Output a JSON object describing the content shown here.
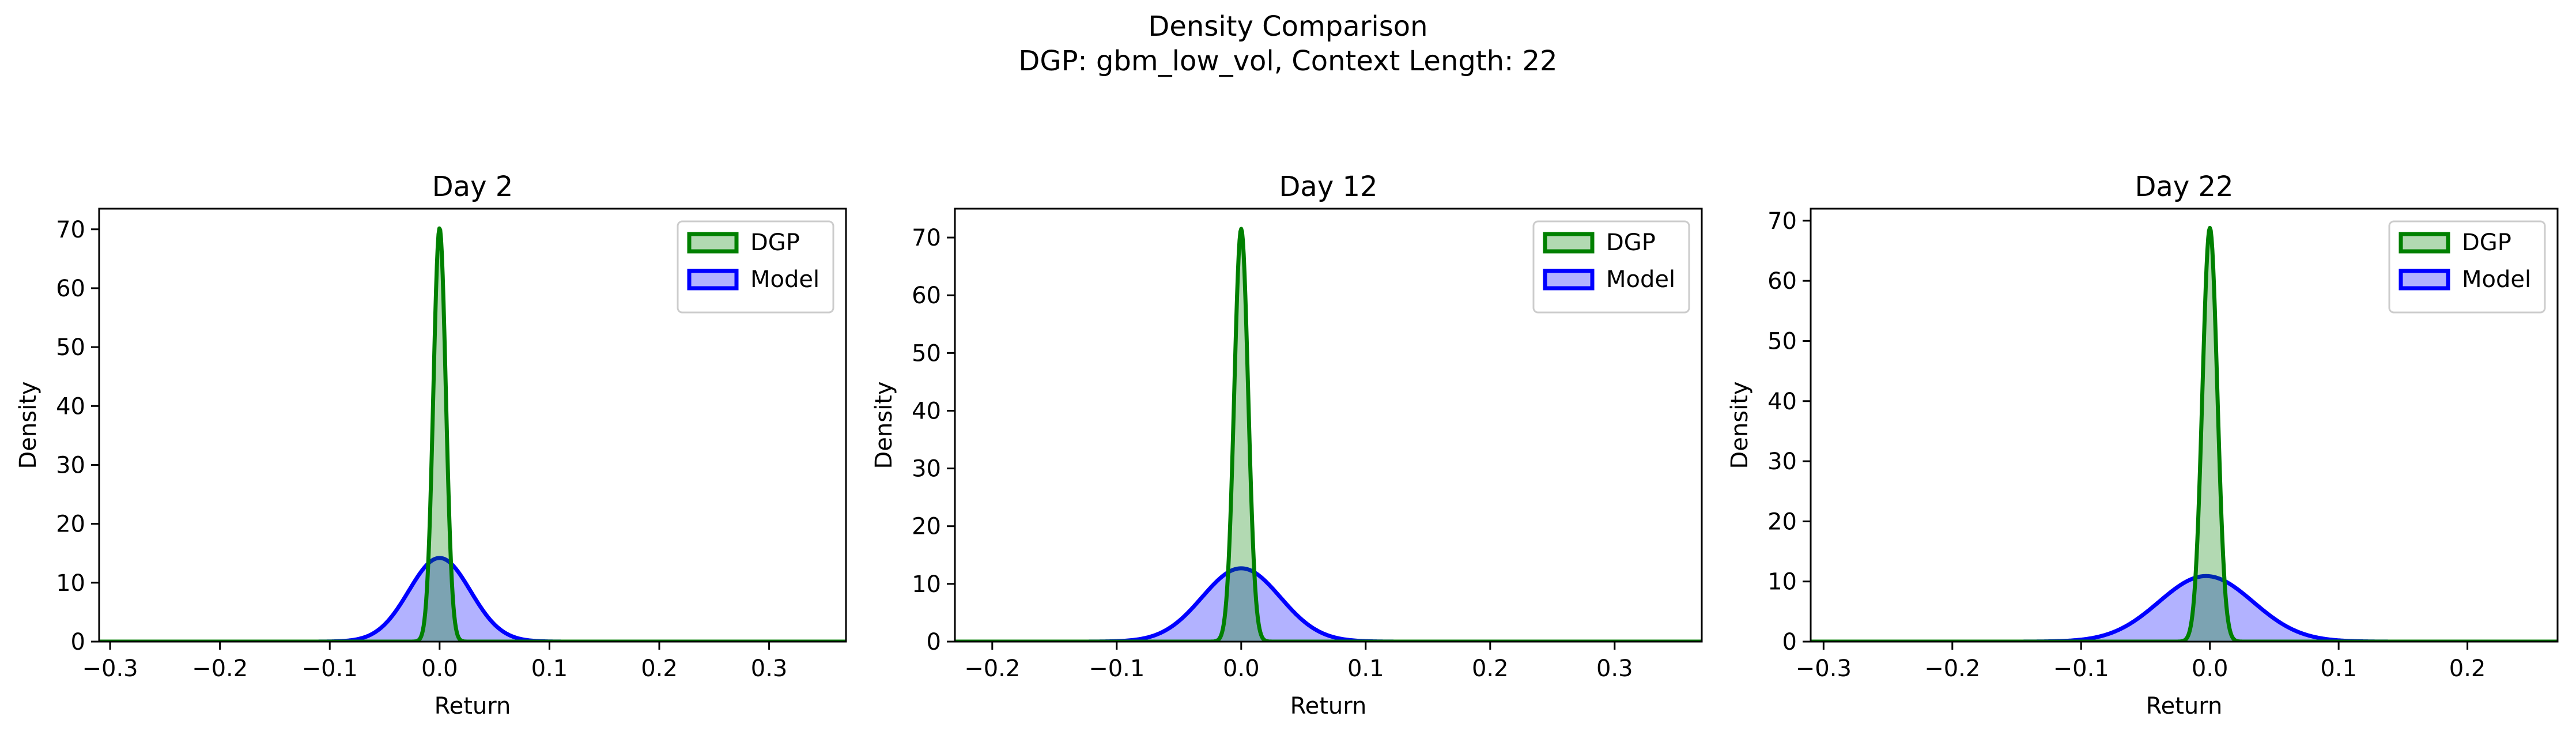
{
  "figure": {
    "title": "Density Comparison",
    "subtitle": "DGP: gbm_low_vol, Context Length: 22"
  },
  "colors": {
    "dgp_line": "#008000",
    "dgp_fill": "#008000",
    "model_line": "#0000ff",
    "model_fill": "#0000ff"
  },
  "chart_data": [
    {
      "type": "area",
      "title": "Day 2",
      "xlabel": "Return",
      "ylabel": "Density",
      "xlim": [
        -0.31,
        0.37
      ],
      "ylim": [
        0,
        73.5
      ],
      "xticks": [
        -0.3,
        -0.2,
        -0.1,
        0.0,
        0.1,
        0.2,
        0.3
      ],
      "xtick_labels": [
        "−0.3",
        "−0.2",
        "−0.1",
        "0.0",
        "0.1",
        "0.2",
        "0.3"
      ],
      "yticks": [
        0,
        10,
        20,
        30,
        40,
        50,
        60,
        70
      ],
      "ytick_labels": [
        "0",
        "10",
        "20",
        "30",
        "40",
        "50",
        "60",
        "70"
      ],
      "legend": "top-right",
      "grid": false,
      "series": [
        {
          "name": "DGP",
          "kind": "gaussian",
          "mean": 0.0,
          "peak": 70.2,
          "std": 0.00568
        },
        {
          "name": "Model",
          "kind": "gaussian",
          "mean": 0.0,
          "peak": 14.2,
          "std": 0.0281
        }
      ]
    },
    {
      "type": "area",
      "title": "Day 12",
      "xlabel": "Return",
      "ylabel": "Density",
      "xlim": [
        -0.23,
        0.37
      ],
      "ylim": [
        0,
        75
      ],
      "xticks": [
        -0.2,
        -0.1,
        0.0,
        0.1,
        0.2,
        0.3
      ],
      "xtick_labels": [
        "−0.2",
        "−0.1",
        "0.0",
        "0.1",
        "0.2",
        "0.3"
      ],
      "yticks": [
        0,
        10,
        20,
        30,
        40,
        50,
        60,
        70
      ],
      "ytick_labels": [
        "0",
        "10",
        "20",
        "30",
        "40",
        "50",
        "60",
        "70"
      ],
      "legend": "top-right",
      "grid": false,
      "series": [
        {
          "name": "DGP",
          "kind": "gaussian",
          "mean": 0.0,
          "peak": 71.5,
          "std": 0.00558
        },
        {
          "name": "Model",
          "kind": "gaussian",
          "mean": 0.0,
          "peak": 12.7,
          "std": 0.0314
        }
      ]
    },
    {
      "type": "area",
      "title": "Day 22",
      "xlabel": "Return",
      "ylabel": "Density",
      "xlim": [
        -0.31,
        0.27
      ],
      "ylim": [
        0,
        72
      ],
      "xticks": [
        -0.3,
        -0.2,
        -0.1,
        0.0,
        0.1,
        0.2
      ],
      "xtick_labels": [
        "−0.3",
        "−0.2",
        "−0.1",
        "0.0",
        "0.1",
        "0.2"
      ],
      "yticks": [
        0,
        10,
        20,
        30,
        40,
        50,
        60,
        70
      ],
      "ytick_labels": [
        "0",
        "10",
        "20",
        "30",
        "40",
        "50",
        "60",
        "70"
      ],
      "legend": "top-right",
      "grid": false,
      "series": [
        {
          "name": "DGP",
          "kind": "gaussian",
          "mean": 0.0,
          "peak": 68.8,
          "std": 0.0058
        },
        {
          "name": "Model",
          "kind": "gaussian",
          "mean": -0.003,
          "peak": 10.9,
          "std": 0.0366
        }
      ]
    }
  ]
}
